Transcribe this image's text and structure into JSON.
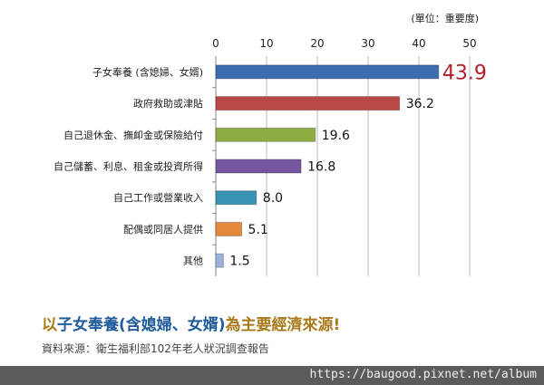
{
  "chart_data": {
    "type": "bar",
    "orientation": "horizontal",
    "unit_note": "(單位：重要度)",
    "categories": [
      "子女奉養 (含媳婦、女婿)",
      "政府救助或津貼",
      "自己退休金、撫卹金或保險給付",
      "自己儲蓄、利息、租金或投資所得",
      "自己工作或營業收入",
      "配偶或同居人提供",
      "其他"
    ],
    "values": [
      43.9,
      36.2,
      19.6,
      16.8,
      8.0,
      5.1,
      1.5
    ],
    "value_labels": [
      "43.9",
      "36.2",
      "19.6",
      "16.8",
      "8.0",
      "5.1",
      "1.5"
    ],
    "colors": [
      "#3d6cb0",
      "#b84745",
      "#8dad43",
      "#7456a0",
      "#3a92b2",
      "#e5893b",
      "#9bb3da"
    ],
    "highlight_label_color": "#b0202a",
    "xlim": [
      0,
      50
    ],
    "xticks": [
      "0",
      "10",
      "20",
      "30",
      "40",
      "50"
    ],
    "grid": true
  },
  "title": {
    "part1": "以",
    "part2": "子女奉養(含媳婦、女婿)",
    "part3": "為主要經濟來源!"
  },
  "source": "資料來源：衛生福利部102年老人狀況調查報告",
  "watermark_url": "https://baugood.pixnet.net/album"
}
